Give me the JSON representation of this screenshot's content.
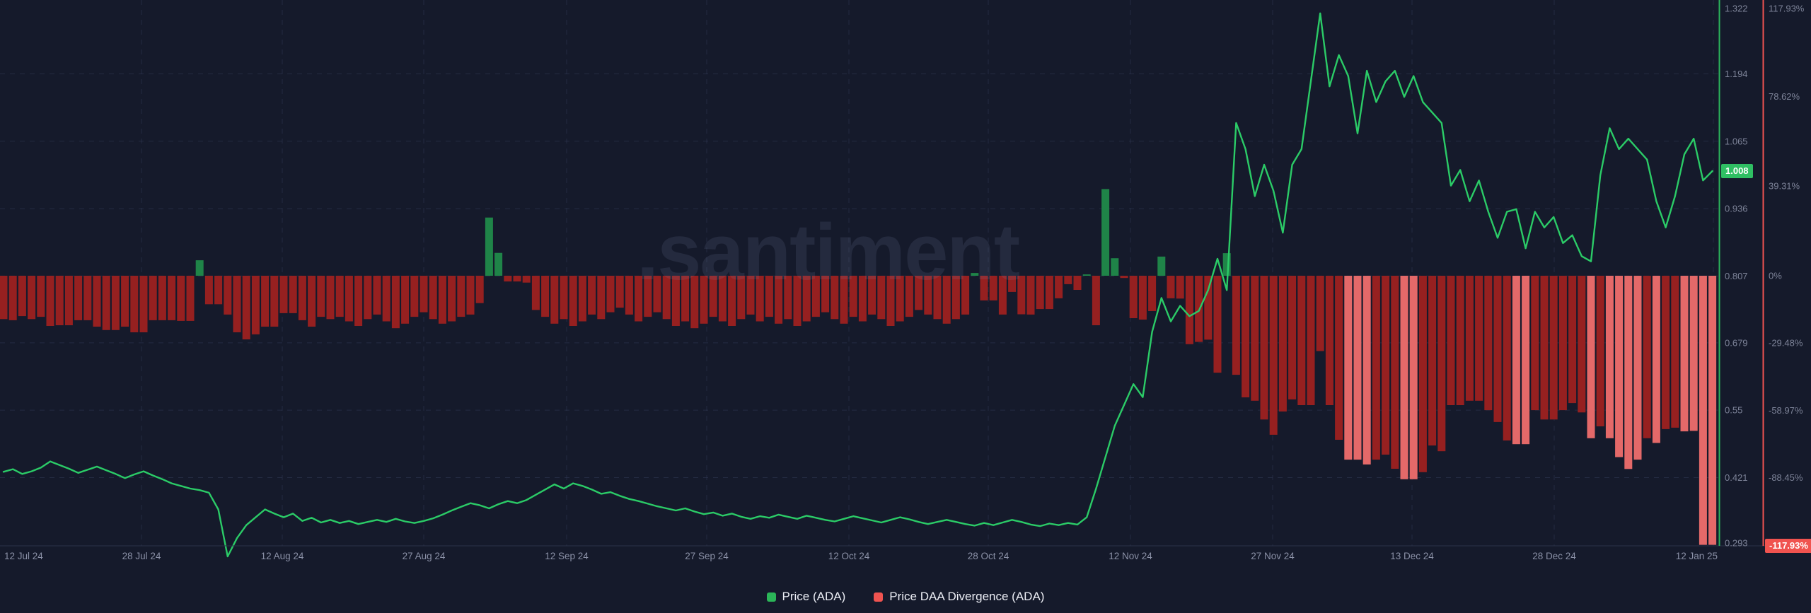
{
  "watermark": ".santiment",
  "legend": [
    {
      "label": "Price (ADA)",
      "color": "#2bb558"
    },
    {
      "label": "Price DAA Divergence (ADA)",
      "color": "#ef5350"
    }
  ],
  "colors": {
    "background": "#151a2b",
    "gridline": "#323a55",
    "price_line": "#2bcb67",
    "price_axis_line": "#2bb35b",
    "percent_axis_line": "#ef5350",
    "bar_negative": "#962020",
    "bar_negative_light": "#e46969",
    "bar_positive": "#1f8448",
    "axis_label": "#7d8398",
    "date_label": "#8b91a7",
    "price_badge_bg": "#2fbf63",
    "percent_badge_bg": "#f0534f"
  },
  "chart_data": {
    "type": "bar+line",
    "title": "",
    "x": {
      "start_date": "12 Jul 24",
      "end_date": "12 Jan 25",
      "tick_labels": [
        "12 Jul 24",
        "28 Jul 24",
        "12 Aug 24",
        "27 Aug 24",
        "12 Sep 24",
        "27 Sep 24",
        "12 Oct 24",
        "28 Oct 24",
        "12 Nov 24",
        "27 Nov 24",
        "13 Dec 24",
        "28 Dec 24",
        "12 Jan 25"
      ]
    },
    "y_price": {
      "ticks": [
        1.322,
        1.194,
        1.065,
        0.936,
        0.807,
        0.679,
        0.55,
        0.421,
        0.293
      ],
      "range": [
        0.293,
        1.322
      ],
      "last_value": 1.008,
      "last_label": "1.008"
    },
    "y_percent": {
      "ticks_pct": [
        117.93,
        78.62,
        39.31,
        0,
        -29.48,
        -58.97,
        -88.45
      ],
      "tick_labels": [
        "117.93%",
        "78.62%",
        "39.31%",
        "0%",
        "-29.48%",
        "-58.97%",
        "-88.45%"
      ],
      "range_pct": [
        -117.93,
        117.93
      ],
      "last_value": -117.93,
      "last_label": "-117.93%"
    },
    "series": [
      {
        "name": "Price (ADA)",
        "type": "line",
        "color": "#2bcb67",
        "values": [
          0.432,
          0.437,
          0.428,
          0.433,
          0.44,
          0.452,
          0.445,
          0.438,
          0.43,
          0.436,
          0.442,
          0.435,
          0.428,
          0.42,
          0.427,
          0.433,
          0.425,
          0.418,
          0.41,
          0.405,
          0.4,
          0.397,
          0.392,
          0.36,
          0.27,
          0.305,
          0.33,
          0.345,
          0.36,
          0.352,
          0.345,
          0.352,
          0.338,
          0.344,
          0.335,
          0.34,
          0.334,
          0.338,
          0.332,
          0.336,
          0.34,
          0.336,
          0.342,
          0.337,
          0.334,
          0.338,
          0.343,
          0.35,
          0.358,
          0.365,
          0.372,
          0.368,
          0.362,
          0.37,
          0.376,
          0.372,
          0.378,
          0.388,
          0.398,
          0.408,
          0.4,
          0.41,
          0.405,
          0.398,
          0.39,
          0.393,
          0.386,
          0.38,
          0.376,
          0.371,
          0.366,
          0.362,
          0.358,
          0.362,
          0.356,
          0.351,
          0.354,
          0.348,
          0.352,
          0.346,
          0.342,
          0.347,
          0.344,
          0.35,
          0.346,
          0.342,
          0.348,
          0.344,
          0.34,
          0.337,
          0.342,
          0.347,
          0.343,
          0.339,
          0.335,
          0.34,
          0.345,
          0.341,
          0.336,
          0.332,
          0.336,
          0.34,
          0.336,
          0.332,
          0.329,
          0.334,
          0.33,
          0.335,
          0.34,
          0.336,
          0.331,
          0.328,
          0.333,
          0.33,
          0.334,
          0.331,
          0.345,
          0.4,
          0.46,
          0.52,
          0.56,
          0.6,
          0.575,
          0.7,
          0.765,
          0.72,
          0.75,
          0.73,
          0.74,
          0.78,
          0.84,
          0.78,
          1.1,
          1.05,
          0.96,
          1.02,
          0.97,
          0.89,
          1.02,
          1.05,
          1.18,
          1.31,
          1.17,
          1.23,
          1.19,
          1.08,
          1.2,
          1.14,
          1.18,
          1.2,
          1.15,
          1.19,
          1.14,
          1.12,
          1.1,
          0.98,
          1.01,
          0.95,
          0.99,
          0.93,
          0.88,
          0.93,
          0.935,
          0.86,
          0.93,
          0.9,
          0.92,
          0.87,
          0.885,
          0.845,
          0.835,
          1.0,
          1.09,
          1.05,
          1.07,
          1.05,
          1.03,
          0.95,
          0.9,
          0.96,
          1.04,
          1.07,
          0.99,
          1.008
        ]
      },
      {
        "name": "Price DAA Divergence (ADA)",
        "type": "bar",
        "color_negative": "#962020",
        "color_negative_highlight": "#e46969",
        "color_positive": "#1f8448",
        "values_pct": [
          -19,
          -19.5,
          -17.7,
          -19,
          -18,
          -22,
          -21.7,
          -21.7,
          -19.5,
          -19.5,
          -22.3,
          -23.8,
          -23.8,
          -22.3,
          -24.8,
          -24.8,
          -19.5,
          -19.5,
          -19.5,
          -19.8,
          -19.8,
          6.8,
          -12.5,
          -12.5,
          -17,
          -24.8,
          -27.9,
          -25.7,
          -22.3,
          -22.3,
          -16.4,
          -16.4,
          -19.5,
          -22.3,
          -18,
          -19,
          -18,
          -20,
          -22,
          -19,
          -17,
          -20,
          -23,
          -21,
          -18,
          -16,
          -19,
          -21,
          -20,
          -18,
          -17,
          -12,
          25.5,
          10,
          -2.5,
          -2.5,
          -3,
          -15,
          -18,
          -21,
          -19,
          -22,
          -20,
          -17,
          -19,
          -16,
          -14,
          -17,
          -20,
          -18,
          -16,
          -19,
          -22,
          -20,
          -23,
          -21,
          -18,
          -20,
          -22,
          -19,
          -17,
          -20,
          -18,
          -21,
          -19,
          -22,
          -20,
          -18,
          -16,
          -19,
          -21,
          -18,
          -20,
          -17,
          -19,
          -22,
          -20,
          -18,
          -15,
          -17,
          -19,
          -21,
          -19,
          -17,
          1.2,
          -10.8,
          -10.8,
          -17,
          -7.1,
          -16.9,
          -17,
          -14.6,
          -14.6,
          -9.9,
          -3.7,
          -6.2,
          0.6,
          -21.7,
          38,
          7.7,
          -1,
          -18.6,
          -19.2,
          -15.5,
          8.4,
          -9.9,
          -10,
          -30,
          -29,
          -28,
          -42.5,
          9.9,
          -43.4,
          -53.3,
          -54.8,
          -63,
          -69.7,
          -59.5,
          -54.2,
          -56.7,
          -56.7,
          -33,
          -56.7,
          -71.9,
          -80.6,
          -80.6,
          -82.7,
          -80.6,
          -78.4,
          -84.6,
          -89.2,
          -89.2,
          -86.1,
          -74.4,
          -76.9,
          -56.7,
          -56.7,
          -54.8,
          -54.8,
          -58.9,
          -64.1,
          -72.2,
          -73.8,
          -73.8,
          -58.9,
          -63,
          -63,
          -58.9,
          -55.8,
          -59.9,
          -71.2,
          -66,
          -71.2,
          -79.5,
          -84.7,
          -80.6,
          -71.2,
          -73.3,
          -67.2,
          -66.6,
          -68.2,
          -68,
          -117.93,
          -117.93
        ],
        "highlight_indices": [
          144,
          145,
          146,
          150,
          151,
          162,
          163,
          170,
          172,
          173,
          174,
          175,
          177,
          180,
          181,
          182,
          183
        ]
      }
    ]
  }
}
